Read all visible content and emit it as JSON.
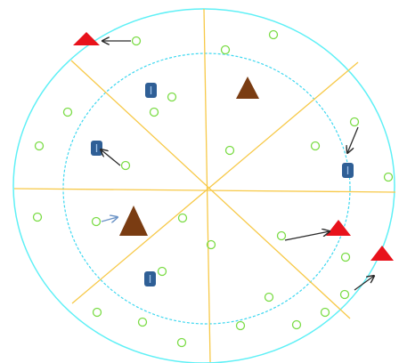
{
  "colors": {
    "background": "#ffffff",
    "outer_circle": "#5ff0f6",
    "inner_circle": "#3fd8f0",
    "sector_lines": "#f7c948",
    "node": "#7bdc46",
    "relay": "#2f5f96",
    "relay_mark": "#9fc3ea",
    "base_station": "#7a3c12",
    "target": "#e8121b",
    "arrow": "#2b2b2b",
    "arrow_highlight": "#6b93c6"
  },
  "icons": {
    "node": "small-circle-icon",
    "relay": "rounded-square-icon",
    "base_station": "brown-triangle-icon",
    "target": "red-triangle-icon",
    "arrow": "arrow-icon"
  }
}
